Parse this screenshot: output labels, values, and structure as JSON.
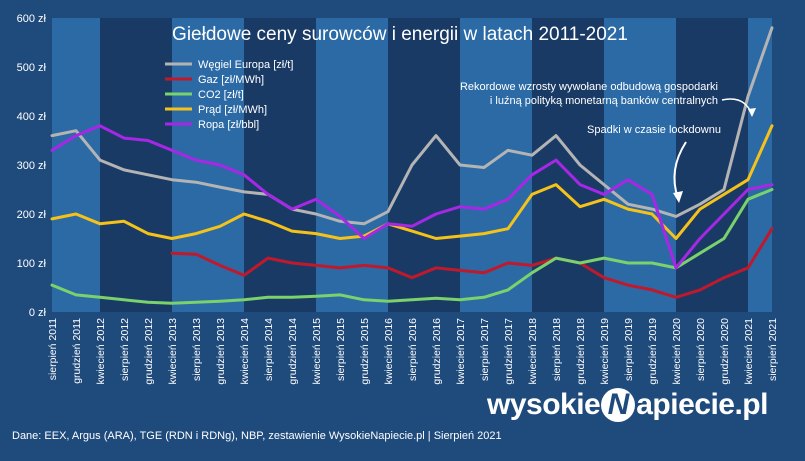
{
  "chart_data": {
    "type": "line",
    "title": "Giełdowe ceny surowców i energii w latach 2011-2021",
    "ylim": [
      0,
      600
    ],
    "y_ticks": [
      "0 zł",
      "100 zł",
      "200 zł",
      "300 zł",
      "400 zł",
      "500 zł",
      "600 zł"
    ],
    "x_labels": [
      "sierpień 2011",
      "grudzień 2011",
      "kwiecień 2012",
      "sierpień 2012",
      "grudzień 2012",
      "kwiecień 2013",
      "sierpień 2013",
      "grudzień 2013",
      "kwiecień 2014",
      "sierpień 2014",
      "grudzień 2014",
      "kwiecień 2015",
      "sierpień 2015",
      "grudzień 2015",
      "kwiecień 2016",
      "sierpień 2016",
      "grudzień 2016",
      "kwiecień 2017",
      "sierpień 2017",
      "grudzień 2017",
      "kwiecień 2018",
      "sierpień 2018",
      "grudzień 2018",
      "kwiecień 2019",
      "sierpień 2019",
      "grudzień 2019",
      "kwiecień 2020",
      "sierpień 2020",
      "grudzień 2020",
      "kwiecień 2021",
      "sierpień 2021"
    ],
    "grid": false,
    "legend_placement": "top-left",
    "series": [
      {
        "name": "Węgiel Europa [zł/t]",
        "color": "#b4b4b4",
        "values": [
          360,
          370,
          310,
          290,
          280,
          270,
          265,
          255,
          245,
          240,
          210,
          200,
          185,
          180,
          205,
          300,
          360,
          300,
          295,
          330,
          320,
          360,
          300,
          260,
          220,
          210,
          195,
          220,
          250,
          440,
          580
        ]
      },
      {
        "name": "Gaz [zł/MWh]",
        "color": "#c0192c",
        "values": [
          null,
          null,
          null,
          null,
          null,
          120,
          118,
          95,
          75,
          110,
          100,
          95,
          90,
          95,
          90,
          70,
          90,
          85,
          80,
          100,
          95,
          110,
          100,
          70,
          55,
          45,
          30,
          45,
          70,
          90,
          170
        ]
      },
      {
        "name": "CO2 [zł/t]",
        "color": "#7bd16b",
        "values": [
          55,
          35,
          30,
          25,
          20,
          18,
          20,
          22,
          25,
          30,
          30,
          32,
          35,
          25,
          22,
          25,
          28,
          25,
          30,
          45,
          80,
          110,
          100,
          110,
          100,
          100,
          90,
          120,
          150,
          230,
          250
        ]
      },
      {
        "name": "Prąd [zł/MWh]",
        "color": "#f5c21a",
        "values": [
          190,
          200,
          180,
          185,
          160,
          150,
          160,
          175,
          200,
          185,
          165,
          160,
          150,
          155,
          180,
          165,
          150,
          155,
          160,
          170,
          240,
          260,
          215,
          230,
          210,
          200,
          150,
          210,
          240,
          270,
          380
        ]
      },
      {
        "name": "Ropa [zł/bbl]",
        "color": "#a627e6",
        "values": [
          330,
          360,
          380,
          355,
          350,
          330,
          310,
          300,
          280,
          240,
          210,
          230,
          195,
          150,
          180,
          175,
          200,
          215,
          210,
          230,
          280,
          310,
          260,
          240,
          270,
          240,
          90,
          150,
          200,
          250,
          260
        ]
      }
    ]
  },
  "annotations": {
    "record": "Rekordowe wzrosty wywołane odbudową gospodarki\ni luźną polityką monetarną banków centralnych",
    "lockdown": "Spadki w czasie lockdownu"
  },
  "footer": "Dane: EEX, Argus (ARA), TGE (RDN i RDNg), NBP, zestawienie WysokieNapiecie.pl   |  Sierpień 2021",
  "brand": {
    "pre": "wysokie",
    "n": "N",
    "post": "apiecie.pl"
  }
}
